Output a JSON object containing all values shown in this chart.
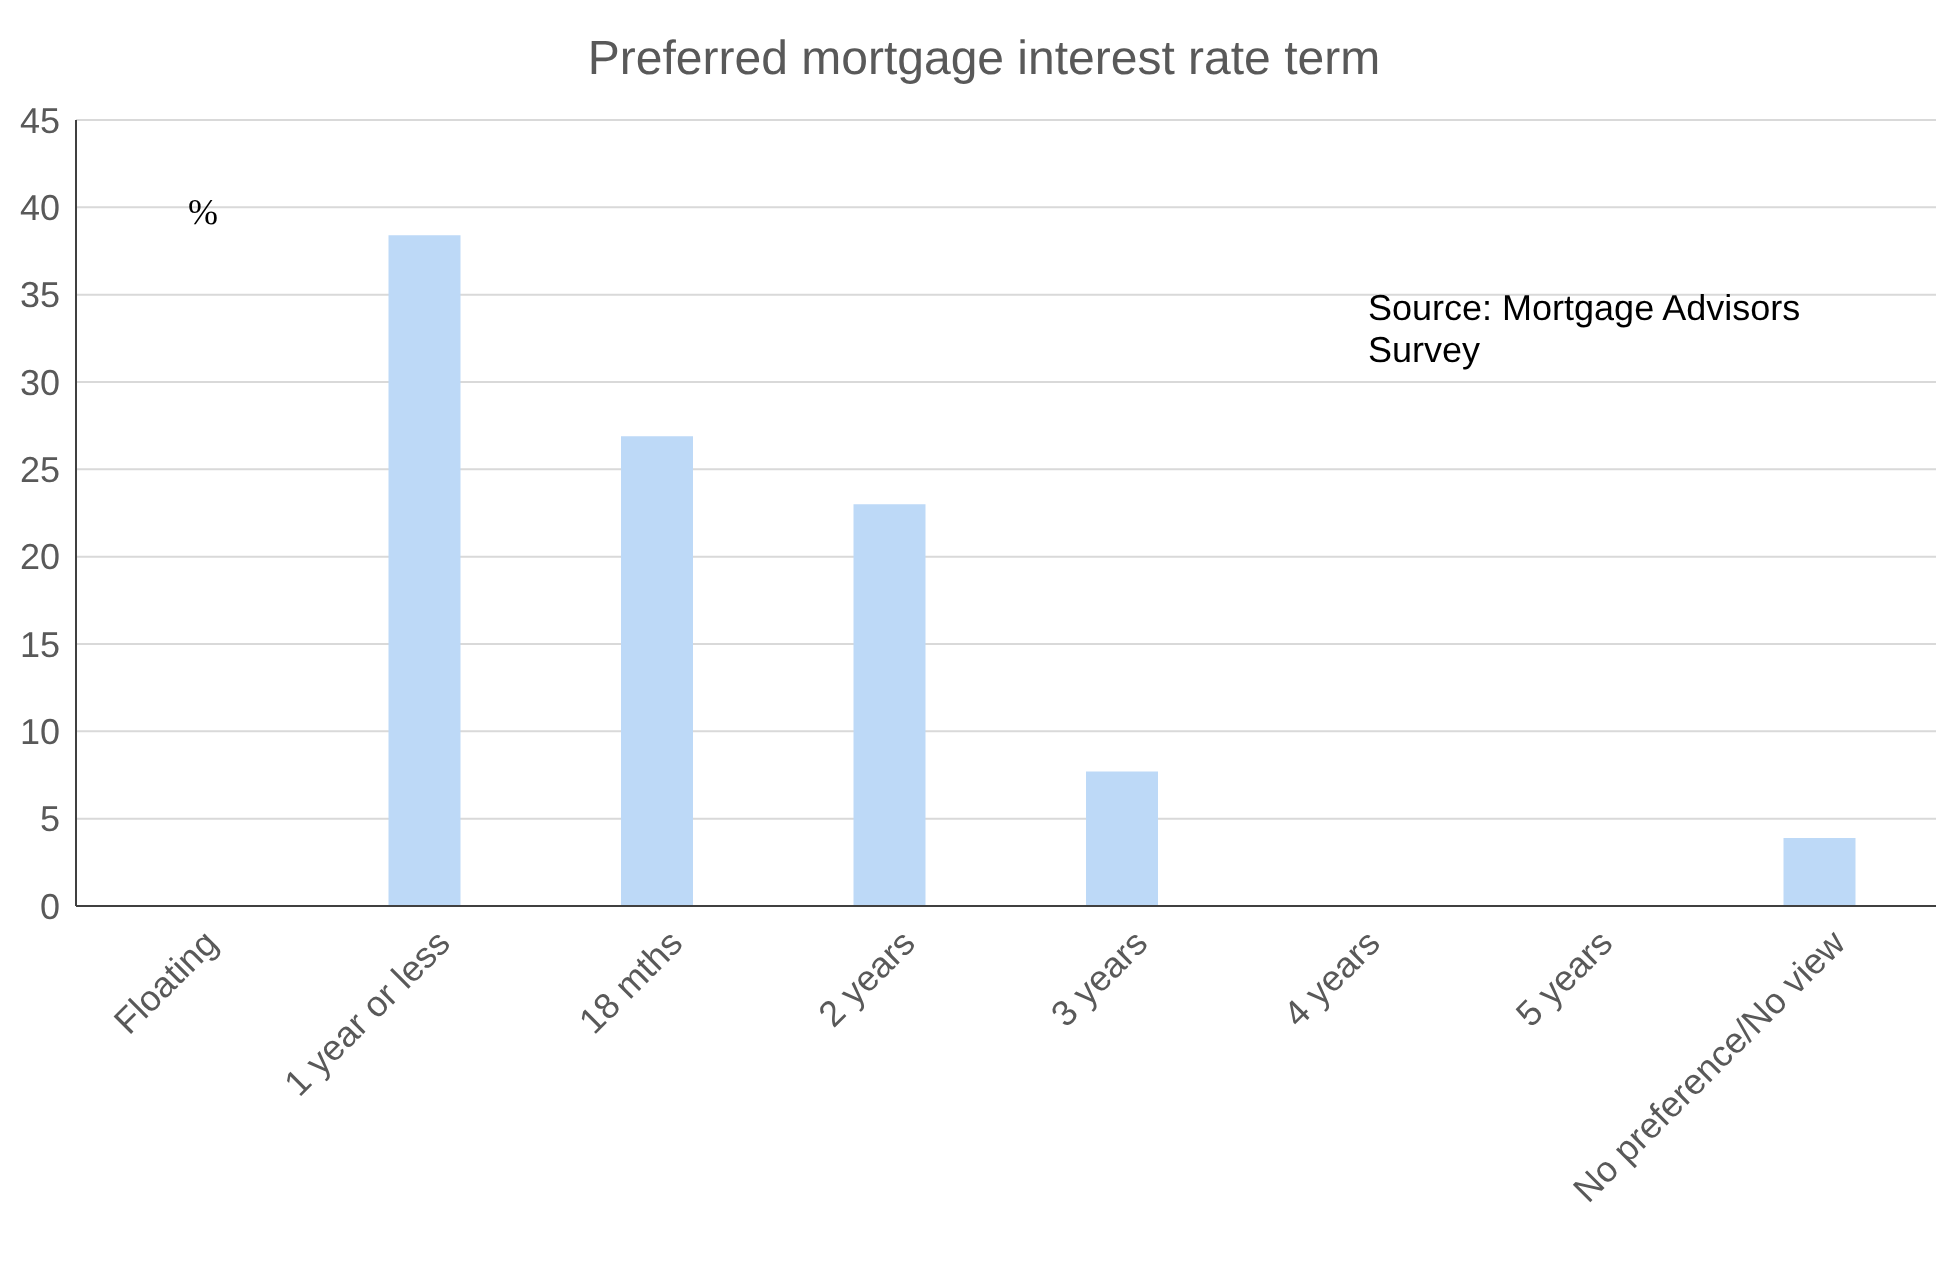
{
  "chart_data": {
    "type": "bar",
    "title": "Preferred mortgage interest rate term",
    "ylabel": "%",
    "categories": [
      "Floating",
      "1 year or less",
      "18 mths",
      "2 years",
      "3 years",
      "4 years",
      "5 years",
      "No preference/No view"
    ],
    "values": [
      0,
      38.4,
      26.9,
      23,
      7.7,
      0,
      0,
      3.9
    ],
    "color": "#bdd9f7",
    "ylim": [
      0,
      45
    ],
    "yticks": [
      0,
      5,
      10,
      15,
      20,
      25,
      30,
      35,
      40,
      45
    ],
    "grid": "y",
    "annotations": [
      "Source: Mortgage Advisors Survey"
    ]
  }
}
